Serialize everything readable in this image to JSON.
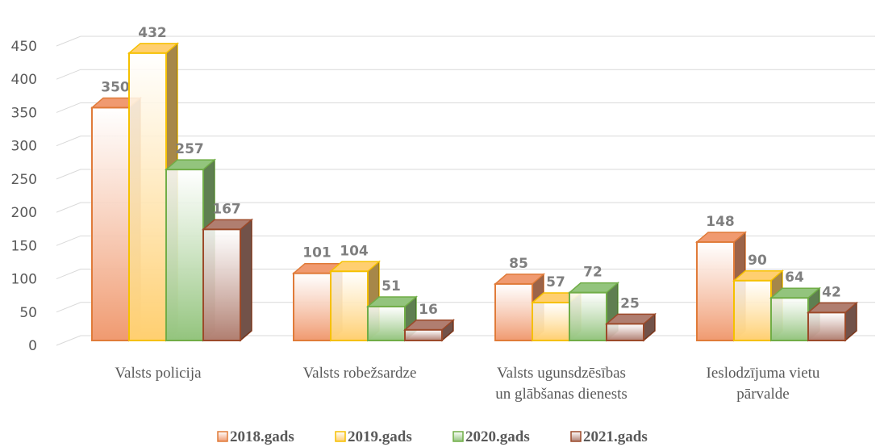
{
  "chart_data": {
    "type": "bar3d",
    "categories": [
      "Valsts policija",
      "Valsts robežsardze",
      "Valsts ugunsdzēsības un glābšanas dienests",
      "Ieslodzījuma vietu pārvalde"
    ],
    "series": [
      {
        "name": "2018.gads",
        "color": "#f09a70",
        "stroke": "#e07b39",
        "values": [
          350,
          101,
          85,
          148
        ]
      },
      {
        "name": "2019.gads",
        "color": "#ffcf70",
        "stroke": "#f5c000",
        "values": [
          432,
          104,
          57,
          90
        ]
      },
      {
        "name": "2020.gads",
        "color": "#93c47d",
        "stroke": "#70ad47",
        "values": [
          257,
          51,
          72,
          64
        ]
      },
      {
        "name": "2021.gads",
        "color": "#b07e70",
        "stroke": "#9c4a2a",
        "values": [
          167,
          16,
          25,
          42
        ]
      }
    ],
    "ylim": [
      0,
      450
    ],
    "yticks": [
      0,
      50,
      100,
      150,
      200,
      250,
      300,
      350,
      400,
      450
    ],
    "grid": true,
    "legend": "bottom"
  }
}
